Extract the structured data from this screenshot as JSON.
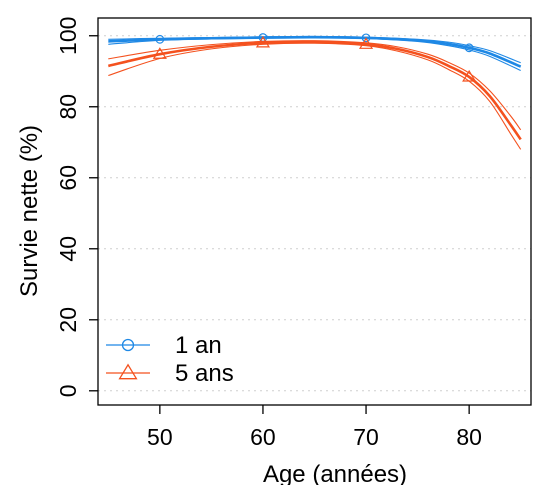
{
  "chart_data": {
    "type": "line",
    "title": "",
    "xlabel": "Age (années)",
    "ylabel": "Survie nette (%)",
    "xlim": [
      44,
      86
    ],
    "ylim": [
      -4,
      105
    ],
    "xticks": [
      50,
      60,
      70,
      80
    ],
    "yticks": [
      0,
      20,
      40,
      60,
      80,
      100
    ],
    "grid": "horizontal dashed",
    "legend": "bottom-left",
    "series": [
      {
        "name": "1 an",
        "color": "#1E88E5",
        "marker": "circle",
        "x": [
          45,
          50,
          55,
          60,
          65,
          70,
          75,
          78,
          80,
          82,
          85
        ],
        "y": [
          98.4,
          99.0,
          99.3,
          99.5,
          99.6,
          99.4,
          98.7,
          97.7,
          96.6,
          95.0,
          91.3
        ],
        "lower": [
          97.6,
          98.7,
          99.1,
          99.3,
          99.4,
          99.2,
          98.4,
          97.2,
          96.0,
          94.2,
          90.2
        ],
        "upper": [
          99.0,
          99.3,
          99.5,
          99.7,
          99.8,
          99.6,
          99.0,
          98.2,
          97.2,
          95.8,
          92.4
        ],
        "marker_x": [
          50,
          60,
          70,
          80
        ],
        "marker_y": [
          99.0,
          99.5,
          99.4,
          96.6
        ]
      },
      {
        "name": "5 ans",
        "color": "#F4511E",
        "marker": "triangle",
        "x": [
          45,
          50,
          55,
          60,
          65,
          70,
          73,
          76,
          78,
          80,
          82,
          84,
          85
        ],
        "y": [
          91.5,
          94.8,
          96.9,
          98.0,
          98.2,
          97.6,
          96.3,
          94.0,
          91.5,
          88.4,
          83.0,
          75.0,
          70.8
        ],
        "lower": [
          88.8,
          93.6,
          96.3,
          97.6,
          97.9,
          97.2,
          95.7,
          93.2,
          90.5,
          87.2,
          81.5,
          72.5,
          68.0
        ],
        "upper": [
          93.5,
          95.9,
          97.5,
          98.4,
          98.6,
          98.0,
          96.9,
          94.8,
          92.5,
          89.5,
          84.5,
          77.5,
          73.5
        ],
        "marker_x": [
          50,
          60,
          70,
          80
        ],
        "marker_y": [
          94.8,
          98.0,
          97.6,
          88.4
        ]
      }
    ]
  }
}
